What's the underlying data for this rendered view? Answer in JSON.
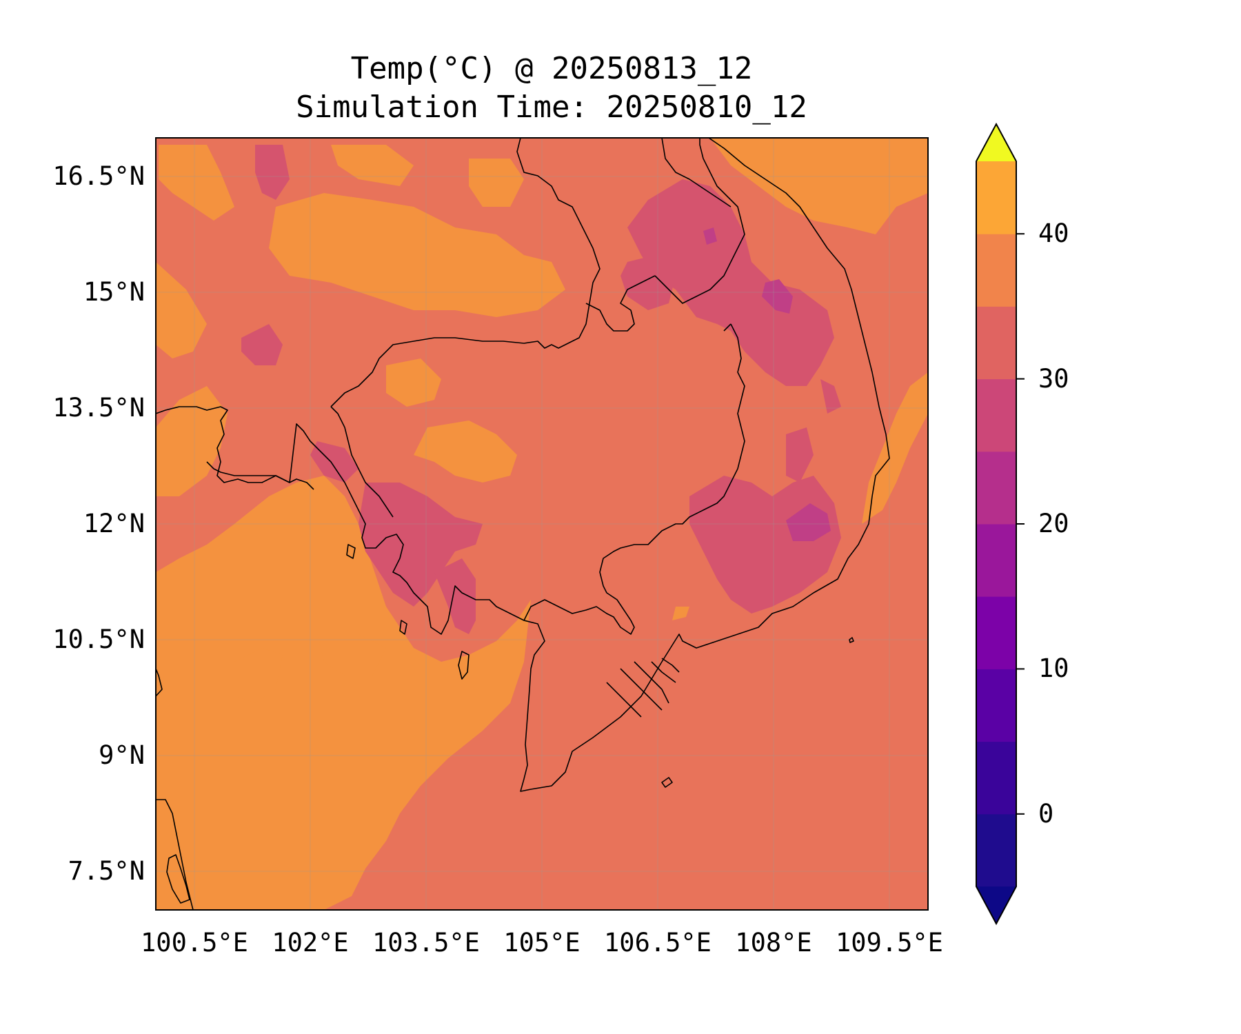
{
  "title": {
    "line1": "Temp(°C) @ 20250813_12",
    "line2": "Simulation Time: 20250810_12"
  },
  "map": {
    "extent_lon": [
      100.0,
      110.0
    ],
    "extent_lat": [
      7.0,
      17.0
    ],
    "x_ticks": [
      "100.5°E",
      "102°E",
      "103.5°E",
      "105°E",
      "106.5°E",
      "108°E",
      "109.5°E"
    ],
    "y_ticks": [
      "16.5°N",
      "15°N",
      "13.5°N",
      "12°N",
      "10.5°N",
      "9°N",
      "7.5°N"
    ],
    "region": "Cambodia, southern Vietnam, eastern Thailand, Gulf of Thailand"
  },
  "colorbar": {
    "colormap": "plasma",
    "extend": "both",
    "levels": [
      -5,
      0,
      5,
      10,
      15,
      20,
      25,
      30,
      35,
      40,
      45
    ],
    "tick_labels": [
      "0",
      "10",
      "20",
      "30",
      "40"
    ],
    "colors": [
      "#1f0c8e",
      "#3a049a",
      "#5a01a5",
      "#7c02a8",
      "#9a179b",
      "#b52f8c",
      "#cc4778",
      "#e06461",
      "#f1844b",
      "#fca636",
      "#f5d92c"
    ],
    "under_color": "#0d0887",
    "over_color": "#f0f921"
  },
  "field_colors": {
    "bin_20_25": "#d5546e",
    "bin_25_30": "#e8735a",
    "bin_30_35": "#f4923f",
    "bin_15_20": "#c03f86"
  }
}
